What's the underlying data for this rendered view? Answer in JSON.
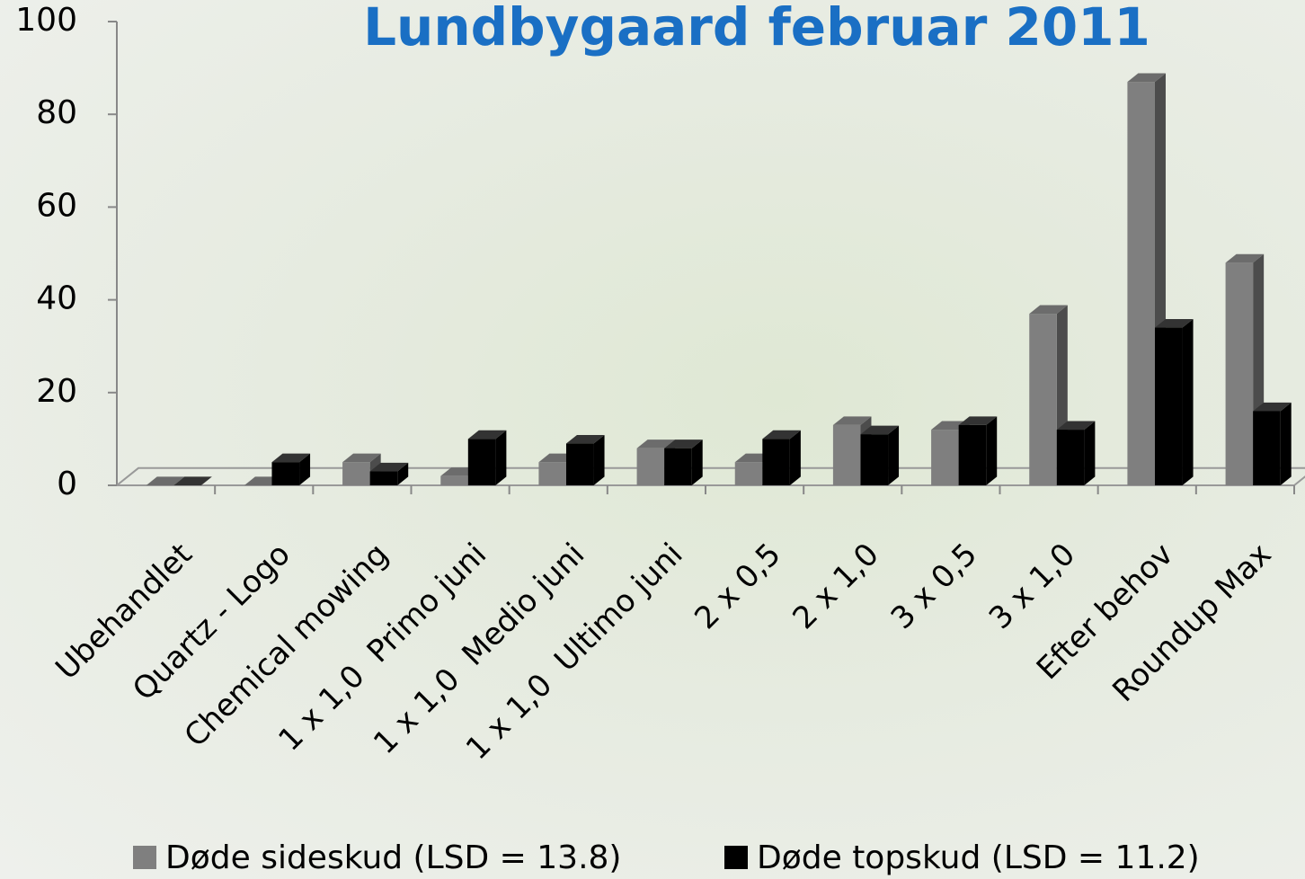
{
  "chart_data": {
    "type": "bar",
    "title": "Lundbygaard februar 2011",
    "categories": [
      "Ubehandlet",
      "Quartz - Logo",
      "Chemical mowing",
      "1 x 1,0  Primo juni",
      "1 x 1,0  Medio juni",
      "1 x 1,0  Ultimo juni",
      "2 x 0,5",
      "2 x 1,0",
      "3 x 0,5",
      "3 x 1,0",
      "Efter behov",
      "Roundup Max"
    ],
    "series": [
      {
        "name": "Døde sideskud (LSD = 13.8)",
        "color": "#7f7f7f",
        "values": [
          0,
          0,
          5,
          2,
          5,
          8,
          5,
          13,
          12,
          37,
          87,
          48
        ]
      },
      {
        "name": "Døde topskud (LSD = 11.2)",
        "color": "#000000",
        "values": [
          0,
          5,
          3,
          10,
          9,
          8,
          10,
          11,
          13,
          12,
          34,
          16
        ]
      }
    ],
    "ylim": [
      0,
      100
    ],
    "yticks": [
      0,
      20,
      40,
      60,
      80,
      100
    ],
    "legend": "bottom"
  }
}
